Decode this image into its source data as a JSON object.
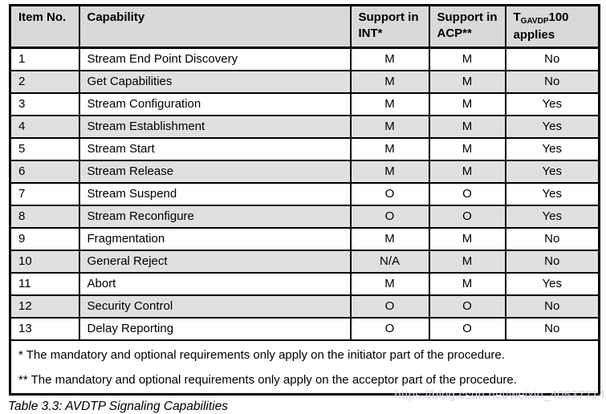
{
  "table": {
    "headers": {
      "item_no": "Item No.",
      "capability": "Capability",
      "support_int": "Support in INT*",
      "support_acp": "Support in ACP**",
      "t_gavdp": {
        "prefix": "T",
        "sub": "GAVDP",
        "suffix": "100",
        "line2": "applies"
      }
    },
    "rows": [
      {
        "item": "1",
        "capability": "Stream End Point Discovery",
        "int": "M",
        "acp": "M",
        "t100": "No"
      },
      {
        "item": "2",
        "capability": "Get Capabilities",
        "int": "M",
        "acp": "M",
        "t100": "No"
      },
      {
        "item": "3",
        "capability": "Stream Configuration",
        "int": "M",
        "acp": "M",
        "t100": "Yes"
      },
      {
        "item": "4",
        "capability": "Stream Establishment",
        "int": "M",
        "acp": "M",
        "t100": "Yes"
      },
      {
        "item": "5",
        "capability": "Stream Start",
        "int": "M",
        "acp": "M",
        "t100": "Yes"
      },
      {
        "item": "6",
        "capability": "Stream Release",
        "int": "M",
        "acp": "M",
        "t100": "Yes"
      },
      {
        "item": "7",
        "capability": "Stream Suspend",
        "int": "O",
        "acp": "O",
        "t100": "Yes"
      },
      {
        "item": "8",
        "capability": "Stream Reconfigure",
        "int": "O",
        "acp": "O",
        "t100": "Yes"
      },
      {
        "item": "9",
        "capability": "Fragmentation",
        "int": "M",
        "acp": "M",
        "t100": "No"
      },
      {
        "item": "10",
        "capability": "General Reject",
        "int": "N/A",
        "acp": "M",
        "t100": "No"
      },
      {
        "item": "11",
        "capability": "Abort",
        "int": "M",
        "acp": "M",
        "t100": "Yes"
      },
      {
        "item": "12",
        "capability": "Security Control",
        "int": "O",
        "acp": "O",
        "t100": "No"
      },
      {
        "item": "13",
        "capability": "Delay Reporting",
        "int": "O",
        "acp": "O",
        "t100": "No"
      }
    ],
    "footnotes": [
      "* The mandatory and optional requirements only apply on the initiator part of the procedure.",
      "** The mandatory and optional requirements only apply on the acceptor part of the procedure."
    ],
    "caption": "Table 3.3: AVDTP Signaling Capabilities"
  },
  "watermark": "https://blog.csdn.net/weixin_40537714",
  "colors": {
    "header_bg": "#d9d9d9",
    "shaded_row_bg": "#e0e0e0",
    "border": "#000000",
    "watermark_text": "#d6d8e2"
  }
}
